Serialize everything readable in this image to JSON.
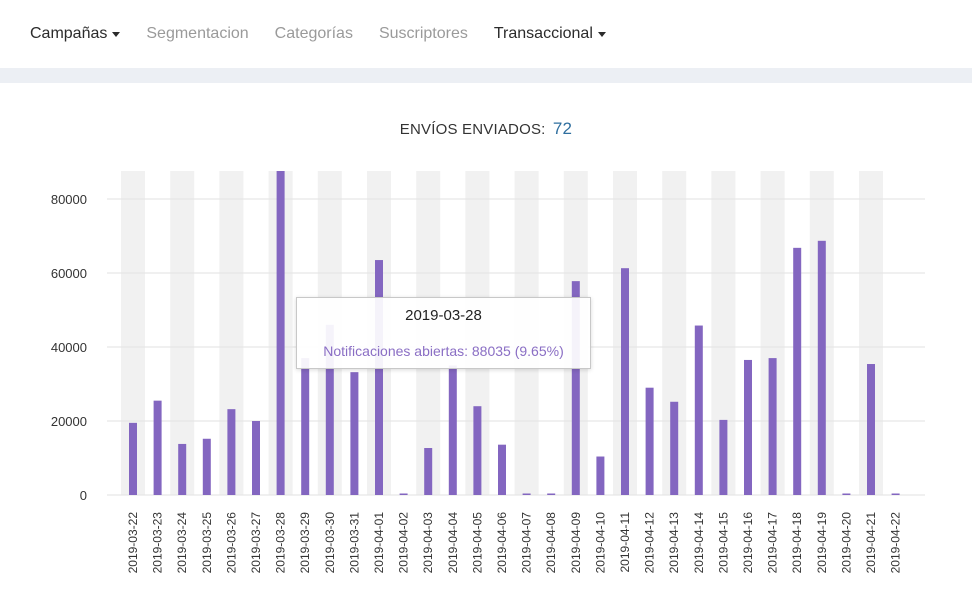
{
  "nav": {
    "items": [
      {
        "label": "Campañas",
        "dropdown": true,
        "active": true
      },
      {
        "label": "Segmentacion",
        "dropdown": false,
        "active": false
      },
      {
        "label": "Categorías",
        "dropdown": false,
        "active": false
      },
      {
        "label": "Suscriptores",
        "dropdown": false,
        "active": false
      },
      {
        "label": "Transaccional",
        "dropdown": true,
        "active": true
      }
    ]
  },
  "chart_header": {
    "label": "ENVÍOS ENVIADOS:",
    "count": "72"
  },
  "tooltip": {
    "date": "2019-03-28",
    "text": "Notificaciones abiertas: 88035 (9.65%)"
  },
  "colors": {
    "bar": "#8366c0",
    "column_band": "#f1f1f1",
    "grid": "#e2e2e2",
    "count": "#2f6f9f"
  },
  "chart_data": {
    "type": "bar",
    "title": "",
    "categories": [
      "2019-03-22",
      "2019-03-23",
      "2019-03-24",
      "2019-03-25",
      "2019-03-26",
      "2019-03-27",
      "2019-03-28",
      "2019-03-29",
      "2019-03-30",
      "2019-03-31",
      "2019-04-01",
      "2019-04-02",
      "2019-04-03",
      "2019-04-04",
      "2019-04-05",
      "2019-04-06",
      "2019-04-07",
      "2019-04-08",
      "2019-04-09",
      "2019-04-10",
      "2019-04-11",
      "2019-04-12",
      "2019-04-13",
      "2019-04-14",
      "2019-04-15",
      "2019-04-16",
      "2019-04-17",
      "2019-04-18",
      "2019-04-19",
      "2019-04-20",
      "2019-04-21",
      "2019-04-22"
    ],
    "series": [
      {
        "name": "Notificaciones abiertas",
        "values": [
          19500,
          25500,
          13800,
          15200,
          23200,
          20000,
          88035,
          37000,
          46000,
          33200,
          63500,
          0,
          12700,
          35000,
          24000,
          13600,
          0,
          0,
          57800,
          10400,
          61300,
          29000,
          25200,
          45800,
          20300,
          36500,
          37000,
          66800,
          68700,
          0,
          35400,
          0
        ]
      }
    ],
    "ylim": [
      0,
      88035
    ],
    "yticks": [
      0,
      20000,
      40000,
      60000,
      80000
    ],
    "grid": true,
    "legend": "none",
    "xlabel": "",
    "ylabel": ""
  }
}
